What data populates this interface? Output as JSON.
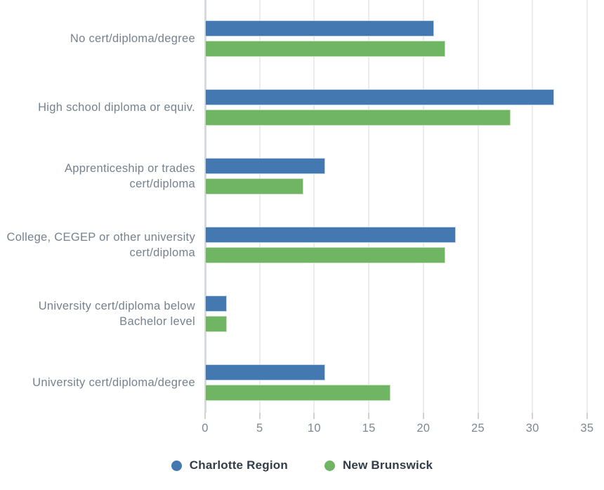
{
  "chart_data": {
    "type": "bar",
    "orientation": "horizontal",
    "title": "",
    "xlabel": "",
    "ylabel": "",
    "grid": true,
    "legend_position": "bottom",
    "categories": [
      "No cert/diploma/degree",
      "High school diploma or equiv.",
      "Apprenticeship or trades cert/diploma",
      "College, CEGEP or other university cert/diploma",
      "University cert/diploma below Bachelor level",
      "University cert/diploma/degree"
    ],
    "category_label_lines": [
      [
        "No cert/diploma/degree"
      ],
      [
        "High school diploma or equiv."
      ],
      [
        "Apprenticeship or trades",
        "cert/diploma"
      ],
      [
        "College, CEGEP or other university",
        "cert/diploma"
      ],
      [
        "University cert/diploma below",
        "Bachelor level"
      ],
      [
        "University cert/diploma/degree"
      ]
    ],
    "series": [
      {
        "name": "Charlotte Region",
        "color": "#4478b1",
        "values": [
          21,
          32,
          11,
          23,
          2,
          11
        ]
      },
      {
        "name": "New Brunswick",
        "color": "#70b564",
        "values": [
          22,
          28,
          9,
          22,
          2,
          17
        ]
      }
    ],
    "x_axis": {
      "min": 0,
      "max": 35,
      "tick_step": 5,
      "ticks": [
        0,
        5,
        10,
        15,
        20,
        25,
        30,
        35
      ]
    }
  },
  "legend": {
    "items": [
      {
        "label": "Charlotte Region",
        "color": "#4478b1"
      },
      {
        "label": "New Brunswick",
        "color": "#70b564"
      }
    ]
  },
  "colors": {
    "background": "#ffffff",
    "gridline": "#ececec",
    "zero_axis": "#d3dae2",
    "tick": "#ced3da",
    "tick_label_text": "#7d8795",
    "category_label_text": "#76818f",
    "legend_text": "#333d49",
    "series_blue": "#4478b1",
    "series_green": "#70b564"
  }
}
